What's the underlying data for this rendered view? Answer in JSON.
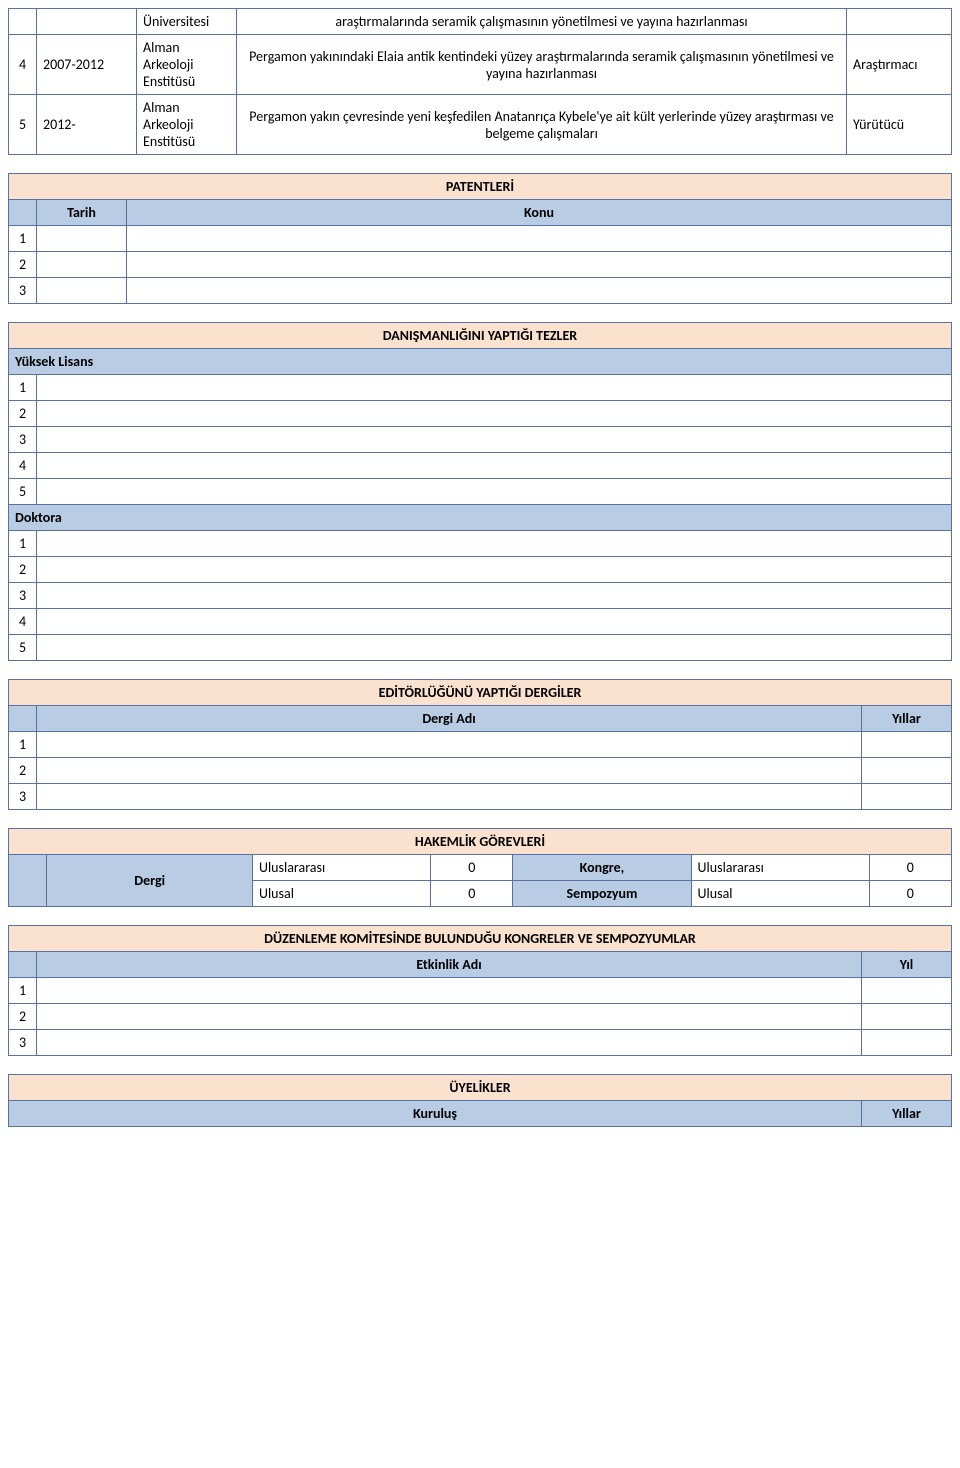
{
  "research": {
    "rows": [
      {
        "idx": "",
        "years": "",
        "inst": "Üniversitesi",
        "desc": "araştırmalarında seramik çalışmasının yönetilmesi ve yayına hazırlanması",
        "role": ""
      },
      {
        "idx": "4",
        "years": "2007-2012",
        "inst": "Alman Arkeoloji Enstitüsü",
        "desc": "Pergamon yakınındaki Elaia antik kentindeki yüzey araştırmalarında seramik çalışmasının yönetilmesi ve yayına hazırlanması",
        "role": "Araştırmacı"
      },
      {
        "idx": "5",
        "years": "2012-",
        "inst": "Alman Arkeoloji Enstitüsü",
        "desc": "Pergamon yakın çevresinde yeni keşfedilen Anatanrıça Kybele'ye ait kült yerlerinde yüzey araştırması ve belgeme çalışmaları",
        "role": "Yürütücü"
      }
    ]
  },
  "patentleri": {
    "title": "PATENTLERİ",
    "tarih": "Tarih",
    "konu": "Konu",
    "rows": [
      "1",
      "2",
      "3"
    ]
  },
  "tezler": {
    "title": "DANIŞMANLIĞINI YAPTIĞI TEZLER",
    "yuksek_lisans": "Yüksek Lisans",
    "doktora": "Doktora",
    "yl_rows": [
      "1",
      "2",
      "3",
      "4",
      "5"
    ],
    "dk_rows": [
      "1",
      "2",
      "3",
      "4",
      "5"
    ]
  },
  "editor": {
    "title": "EDİTÖRLÜĞÜNÜ YAPTIĞI DERGİLER",
    "dergi_adi": "Dergi Adı",
    "yillar": "Yıllar",
    "rows": [
      "1",
      "2",
      "3"
    ]
  },
  "hakemlik": {
    "title": "HAKEMLİK GÖREVLERİ",
    "dergi": "Dergi",
    "kongre_sempozyum1": "Kongre,",
    "kongre_sempozyum2": "Sempozyum",
    "uluslararasi": "Uluslararası",
    "ulusal": "Ulusal",
    "dergi_intl": "0",
    "dergi_ulusal": "0",
    "kongre_intl": "0",
    "kongre_ulusal": "0"
  },
  "duzenleme": {
    "title": "DÜZENLEME KOMİTESİNDE BULUNDUĞU KONGRELER VE SEMPOZYUMLAR",
    "etkinlik_adi": "Etkinlik Adı",
    "yil": "Yıl",
    "rows": [
      "1",
      "2",
      "3"
    ]
  },
  "uyelikler": {
    "title": "ÜYELİKLER",
    "kurulus": "Kuruluş",
    "yillar": "Yıllar"
  }
}
